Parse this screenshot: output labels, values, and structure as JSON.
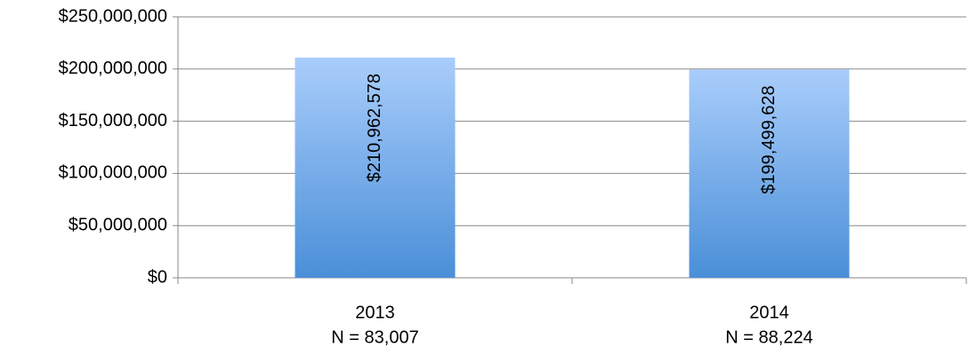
{
  "chart_data": {
    "type": "bar",
    "categories": [
      [
        "2013",
        "N = 83,007"
      ],
      [
        "2014",
        "N = 88,224"
      ]
    ],
    "values": [
      210962578,
      199499628
    ],
    "value_labels": [
      "$210,962,578",
      "$199,499,628"
    ],
    "color": [
      "#a9cdfb",
      "#4a8fd8"
    ],
    "ylim": [
      0,
      250000000
    ],
    "yticks": [
      {
        "value": 0,
        "label": "$0"
      },
      {
        "value": 50000000,
        "label": "$50,000,000"
      },
      {
        "value": 100000000,
        "label": "$100,000,000"
      },
      {
        "value": 150000000,
        "label": "$150,000,000"
      },
      {
        "value": 200000000,
        "label": "$200,000,000"
      },
      {
        "value": 250000000,
        "label": "$250,000,000"
      }
    ],
    "grid": true
  }
}
